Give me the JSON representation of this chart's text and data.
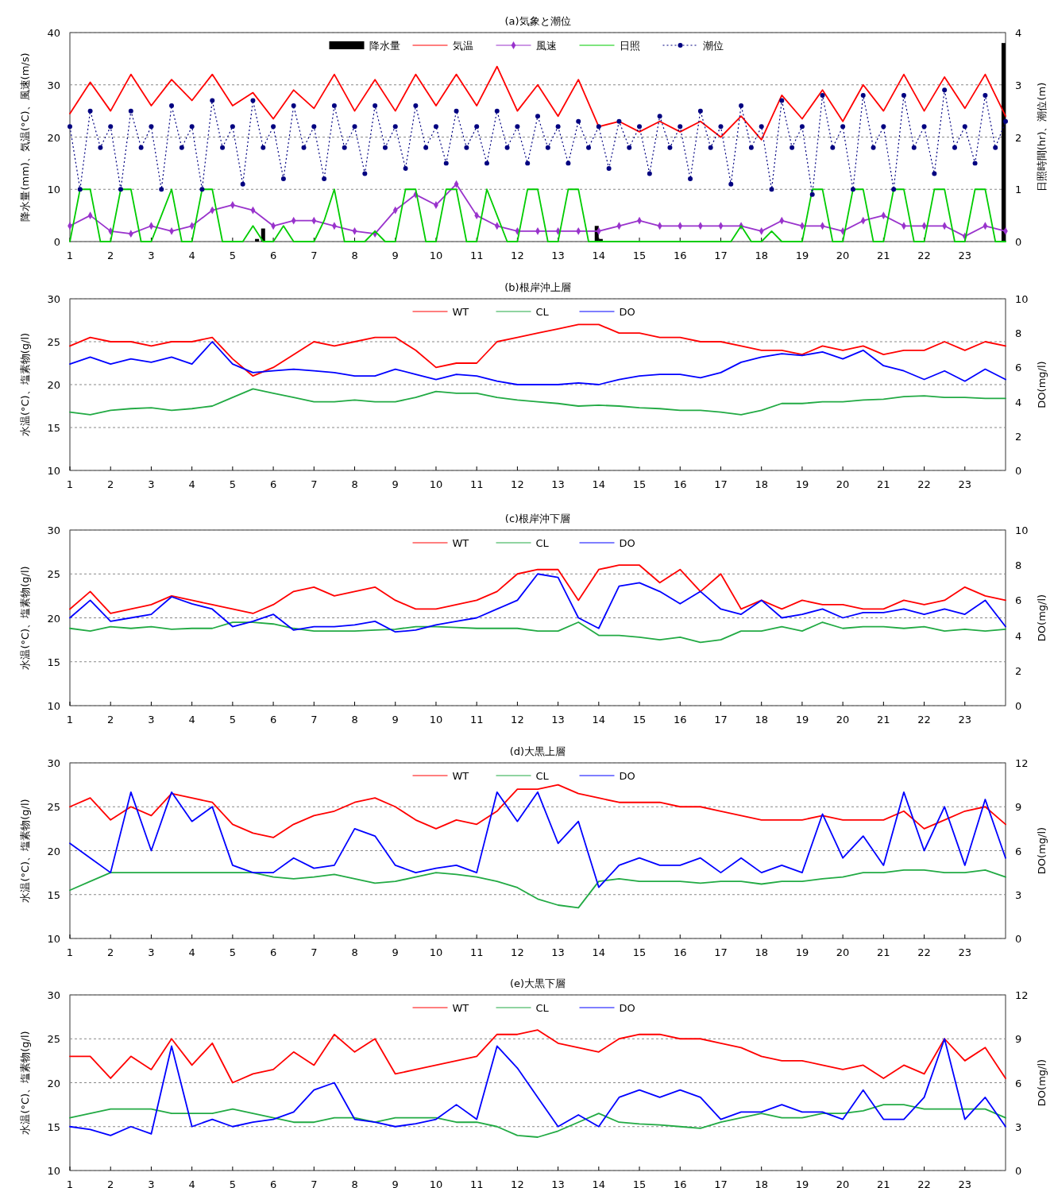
{
  "chart_data": [
    {
      "type": "line",
      "title": "(a)気象と潮位",
      "ylabel": "降水量(mm)、気温(°C)、風速(m/s)",
      "y2label": "日照時間(hr)、潮位(m)",
      "xlim": [
        1,
        24
      ],
      "xticks": [
        1,
        2,
        3,
        4,
        5,
        6,
        7,
        8,
        9,
        10,
        11,
        12,
        13,
        14,
        15,
        16,
        17,
        18,
        19,
        20,
        21,
        22,
        23
      ],
      "ylim": [
        0,
        40
      ],
      "yticks": [
        0,
        10,
        20,
        30,
        40
      ],
      "y2lim": [
        0,
        4
      ],
      "y2ticks": [
        0,
        1,
        2,
        3,
        4
      ],
      "grid": "y",
      "legend": "top",
      "series": [
        {
          "name": "降水量",
          "type": "bar",
          "color": "#000000",
          "x": [
            5.6,
            5.75,
            13.95,
            14.05,
            23.95
          ],
          "values": [
            0.5,
            2.5,
            3,
            0.5,
            38
          ]
        },
        {
          "name": "気温",
          "color": "#ff0000",
          "x": [
            1,
            1.5,
            2,
            2.5,
            3,
            3.5,
            4,
            4.5,
            5,
            5.5,
            6,
            6.5,
            7,
            7.5,
            8,
            8.5,
            9,
            9.5,
            10,
            10.5,
            11,
            11.5,
            12,
            12.5,
            13,
            13.5,
            14,
            14.5,
            15,
            15.5,
            16,
            16.5,
            17,
            17.5,
            18,
            18.5,
            19,
            19.5,
            20,
            20.5,
            21,
            21.5,
            22,
            22.5,
            23,
            23.5,
            24
          ],
          "values": [
            24.5,
            30.5,
            25,
            32,
            26,
            31,
            27,
            32,
            26,
            28.5,
            23.5,
            29,
            25.5,
            32,
            25,
            31,
            25,
            32,
            26,
            32,
            26,
            33.5,
            25,
            30,
            24,
            31,
            22,
            23,
            21,
            23,
            21,
            23,
            20,
            24,
            19.5,
            28,
            23.5,
            29,
            23,
            30,
            25,
            32,
            25,
            31.5,
            25.5,
            32,
            24
          ]
        },
        {
          "name": "風速",
          "color": "#9933cc",
          "marker": "diamond",
          "x": [
            1,
            1.5,
            2,
            2.5,
            3,
            3.5,
            4,
            4.5,
            5,
            5.5,
            6,
            6.5,
            7,
            7.5,
            8,
            8.5,
            9,
            9.5,
            10,
            10.5,
            11,
            11.5,
            12,
            12.5,
            13,
            13.5,
            14,
            14.5,
            15,
            15.5,
            16,
            16.5,
            17,
            17.5,
            18,
            18.5,
            19,
            19.5,
            20,
            20.5,
            21,
            21.5,
            22,
            22.5,
            23,
            23.5,
            24
          ],
          "values": [
            3,
            5,
            2,
            1.5,
            3,
            2,
            3,
            6,
            7,
            6,
            3,
            4,
            4,
            3,
            2,
            1.5,
            6,
            9,
            7,
            11,
            5,
            3,
            2,
            2,
            2,
            2,
            2,
            3,
            4,
            3,
            3,
            3,
            3,
            3,
            2,
            4,
            3,
            3,
            2,
            4,
            5,
            3,
            3,
            3,
            1,
            3,
            2
          ]
        },
        {
          "name": "日照",
          "axis": "y2",
          "color": "#00cc00",
          "x": [
            1,
            1.25,
            1.5,
            1.75,
            2,
            2.25,
            2.5,
            2.75,
            3,
            3.25,
            3.5,
            3.75,
            4,
            4.25,
            4.5,
            4.75,
            5,
            5.25,
            5.5,
            5.75,
            6,
            6.25,
            6.5,
            6.75,
            7,
            7.25,
            7.5,
            7.75,
            8,
            8.25,
            8.5,
            8.75,
            9,
            9.25,
            9.5,
            9.75,
            10,
            10.25,
            10.5,
            10.75,
            11,
            11.25,
            11.5,
            11.75,
            12,
            12.25,
            12.5,
            12.75,
            13,
            13.25,
            13.5,
            13.75,
            14,
            14.25,
            14.5,
            14.75,
            15,
            15.25,
            15.5,
            15.75,
            16,
            16.25,
            16.5,
            16.75,
            17,
            17.25,
            17.5,
            17.75,
            18,
            18.25,
            18.5,
            18.75,
            19,
            19.25,
            19.5,
            19.75,
            20,
            20.25,
            20.5,
            20.75,
            21,
            21.25,
            21.5,
            21.75,
            22,
            22.25,
            22.5,
            22.75,
            23,
            23.25,
            23.5,
            23.75,
            24
          ],
          "values": [
            0,
            1,
            1,
            0,
            0,
            1,
            1,
            0,
            0,
            0.5,
            1,
            0,
            0,
            1,
            1,
            0,
            0,
            0,
            0.3,
            0,
            0,
            0.3,
            0,
            0,
            0,
            0.4,
            1,
            0,
            0,
            0,
            0.2,
            0,
            0,
            1,
            1,
            0,
            0,
            1,
            1,
            0,
            0,
            1,
            0.5,
            0,
            0,
            1,
            1,
            0,
            0,
            1,
            1,
            0,
            0,
            0,
            0,
            0,
            0,
            0,
            0,
            0,
            0,
            0,
            0,
            0,
            0,
            0,
            0.3,
            0,
            0,
            0.2,
            0,
            0,
            0,
            1,
            1,
            0,
            0,
            1,
            1,
            0,
            0,
            1,
            1,
            0,
            0,
            1,
            1,
            0,
            0,
            1,
            1,
            0,
            0
          ]
        },
        {
          "name": "潮位",
          "axis": "y2",
          "color": "#000080",
          "marker": "circle",
          "line_style": "dotted",
          "x": [
            1,
            1.25,
            1.5,
            1.75,
            2,
            2.25,
            2.5,
            2.75,
            3,
            3.25,
            3.5,
            3.75,
            4,
            4.25,
            4.5,
            4.75,
            5,
            5.25,
            5.5,
            5.75,
            6,
            6.25,
            6.5,
            6.75,
            7,
            7.25,
            7.5,
            7.75,
            8,
            8.25,
            8.5,
            8.75,
            9,
            9.25,
            9.5,
            9.75,
            10,
            10.25,
            10.5,
            10.75,
            11,
            11.25,
            11.5,
            11.75,
            12,
            12.25,
            12.5,
            12.75,
            13,
            13.25,
            13.5,
            13.75,
            14,
            14.25,
            14.5,
            14.75,
            15,
            15.25,
            15.5,
            15.75,
            16,
            16.25,
            16.5,
            16.75,
            17,
            17.25,
            17.5,
            17.75,
            18,
            18.25,
            18.5,
            18.75,
            19,
            19.25,
            19.5,
            19.75,
            20,
            20.25,
            20.5,
            20.75,
            21,
            21.25,
            21.5,
            21.75,
            22,
            22.25,
            22.5,
            22.75,
            23,
            23.25,
            23.5,
            23.75,
            24
          ],
          "values": [
            2.2,
            1.0,
            2.5,
            1.8,
            2.2,
            1.0,
            2.5,
            1.8,
            2.2,
            1.0,
            2.6,
            1.8,
            2.2,
            1.0,
            2.7,
            1.8,
            2.2,
            1.1,
            2.7,
            1.8,
            2.2,
            1.2,
            2.6,
            1.8,
            2.2,
            1.2,
            2.6,
            1.8,
            2.2,
            1.3,
            2.6,
            1.8,
            2.2,
            1.4,
            2.6,
            1.8,
            2.2,
            1.5,
            2.5,
            1.8,
            2.2,
            1.5,
            2.5,
            1.8,
            2.2,
            1.5,
            2.4,
            1.8,
            2.2,
            1.5,
            2.3,
            1.8,
            2.2,
            1.4,
            2.3,
            1.8,
            2.2,
            1.3,
            2.4,
            1.8,
            2.2,
            1.2,
            2.5,
            1.8,
            2.2,
            1.1,
            2.6,
            1.8,
            2.2,
            1.0,
            2.7,
            1.8,
            2.2,
            0.9,
            2.8,
            1.8,
            2.2,
            1.0,
            2.8,
            1.8,
            2.2,
            1.0,
            2.8,
            1.8,
            2.2,
            1.3,
            2.9,
            1.8,
            2.2,
            1.5,
            2.8,
            1.8,
            2.3
          ]
        }
      ]
    },
    {
      "type": "line",
      "title": "(b)根岸沖上層",
      "ylabel": "水温(°C)、塩素物(g/l)",
      "y2label": "DO(mg/l)",
      "x": [
        1,
        1.5,
        2,
        2.5,
        3,
        3.5,
        4,
        4.5,
        5,
        5.5,
        6,
        6.5,
        7,
        7.5,
        8,
        8.5,
        9,
        9.5,
        10,
        10.5,
        11,
        11.5,
        12,
        12.5,
        13,
        13.5,
        14,
        14.5,
        15,
        15.5,
        16,
        16.5,
        17,
        17.5,
        18,
        18.5,
        19,
        19.5,
        20,
        20.5,
        21,
        21.5,
        22,
        22.5,
        23,
        23.5,
        24
      ],
      "xlim": [
        1,
        24
      ],
      "xticks": [
        1,
        2,
        3,
        4,
        5,
        6,
        7,
        8,
        9,
        10,
        11,
        12,
        13,
        14,
        15,
        16,
        17,
        18,
        19,
        20,
        21,
        22,
        23
      ],
      "ylim": [
        10,
        30
      ],
      "yticks": [
        10,
        15,
        20,
        25,
        30
      ],
      "y2lim": [
        0,
        10
      ],
      "y2ticks": [
        0,
        2,
        4,
        6,
        8,
        10
      ],
      "grid": "y",
      "legend": "top",
      "series": [
        {
          "name": "WT",
          "color": "#ff0000",
          "values": [
            24.5,
            25.5,
            25,
            25,
            24.5,
            25,
            25,
            25.5,
            23,
            21,
            22,
            23.5,
            25,
            24.5,
            25,
            25.5,
            25.5,
            24,
            22,
            22.5,
            22.5,
            25,
            25.5,
            26,
            26.5,
            27,
            27,
            26,
            26,
            25.5,
            25.5,
            25,
            25,
            24.5,
            24,
            24,
            23.5,
            24.5,
            24,
            24.5,
            23.5,
            24,
            24,
            25,
            24,
            25,
            24.5
          ]
        },
        {
          "name": "CL",
          "color": "#22aa44",
          "values": [
            16.8,
            16.5,
            17,
            17.2,
            17.3,
            17,
            17.2,
            17.5,
            18.5,
            19.5,
            19,
            18.5,
            18,
            18,
            18.2,
            18,
            18,
            18.5,
            19.2,
            19,
            19,
            18.5,
            18.2,
            18,
            17.8,
            17.5,
            17.6,
            17.5,
            17.3,
            17.2,
            17,
            17,
            16.8,
            16.5,
            17,
            17.8,
            17.8,
            18,
            18,
            18.2,
            18.3,
            18.6,
            18.7,
            18.5,
            18.5,
            18.4,
            18.4
          ]
        },
        {
          "name": "DO",
          "axis": "y2",
          "color": "#0000ff",
          "values": [
            6.2,
            6.6,
            6.2,
            6.5,
            6.3,
            6.6,
            6.2,
            7.5,
            6.2,
            5.7,
            5.8,
            5.9,
            5.8,
            5.7,
            5.5,
            5.5,
            5.9,
            5.6,
            5.3,
            5.6,
            5.5,
            5.2,
            5.0,
            5.0,
            5.0,
            5.1,
            5.0,
            5.3,
            5.5,
            5.6,
            5.6,
            5.4,
            5.7,
            6.3,
            6.6,
            6.8,
            6.7,
            6.9,
            6.5,
            7.0,
            6.1,
            5.8,
            5.3,
            5.8,
            5.2,
            5.9,
            5.3
          ]
        }
      ]
    },
    {
      "type": "line",
      "title": "(c)根岸沖下層",
      "ylabel": "水温(°C)、塩素物(g/l)",
      "y2label": "DO(mg/l)",
      "x": [
        1,
        1.5,
        2,
        2.5,
        3,
        3.5,
        4,
        4.5,
        5,
        5.5,
        6,
        6.5,
        7,
        7.5,
        8,
        8.5,
        9,
        9.5,
        10,
        10.5,
        11,
        11.5,
        12,
        12.5,
        13,
        13.5,
        14,
        14.5,
        15,
        15.5,
        16,
        16.5,
        17,
        17.5,
        18,
        18.5,
        19,
        19.5,
        20,
        20.5,
        21,
        21.5,
        22,
        22.5,
        23,
        23.5,
        24
      ],
      "xlim": [
        1,
        24
      ],
      "xticks": [
        1,
        2,
        3,
        4,
        5,
        6,
        7,
        8,
        9,
        10,
        11,
        12,
        13,
        14,
        15,
        16,
        17,
        18,
        19,
        20,
        21,
        22,
        23
      ],
      "ylim": [
        10,
        30
      ],
      "yticks": [
        10,
        15,
        20,
        25,
        30
      ],
      "y2lim": [
        0,
        10
      ],
      "y2ticks": [
        0,
        2,
        4,
        6,
        8,
        10
      ],
      "grid": "y",
      "legend": "top",
      "series": [
        {
          "name": "WT",
          "color": "#ff0000",
          "values": [
            21,
            23,
            20.5,
            21,
            21.5,
            22.5,
            22,
            21.5,
            21,
            20.5,
            21.5,
            23,
            23.5,
            22.5,
            23,
            23.5,
            22,
            21,
            21,
            21.5,
            22,
            23,
            25,
            25.5,
            25.5,
            22,
            25.5,
            26,
            26,
            24,
            25.5,
            23,
            25,
            21,
            22,
            21,
            22,
            21.5,
            21.5,
            21,
            21,
            22,
            21.5,
            22,
            23.5,
            22.5,
            22
          ]
        },
        {
          "name": "CL",
          "color": "#22aa44",
          "values": [
            18.8,
            18.5,
            19,
            18.8,
            19,
            18.7,
            18.8,
            18.8,
            19.5,
            19.5,
            19.3,
            18.8,
            18.5,
            18.5,
            18.5,
            18.6,
            18.7,
            19,
            19,
            18.9,
            18.8,
            18.8,
            18.8,
            18.5,
            18.5,
            19.5,
            18,
            18,
            17.8,
            17.5,
            17.8,
            17.2,
            17.5,
            18.5,
            18.5,
            19,
            18.5,
            19.5,
            18.8,
            19,
            19,
            18.8,
            19,
            18.5,
            18.7,
            18.5,
            18.7
          ]
        },
        {
          "name": "DO",
          "axis": "y2",
          "color": "#0000ff",
          "values": [
            5,
            6,
            4.8,
            5,
            5.2,
            6.2,
            5.8,
            5.5,
            4.5,
            4.8,
            5.2,
            4.3,
            4.5,
            4.5,
            4.6,
            4.8,
            4.2,
            4.3,
            4.6,
            4.8,
            5,
            5.5,
            6,
            7.5,
            7.3,
            5,
            4.4,
            6.8,
            7,
            6.5,
            5.8,
            6.5,
            5.5,
            5.2,
            6,
            5,
            5.2,
            5.5,
            5,
            5.3,
            5.3,
            5.5,
            5.2,
            5.5,
            5.2,
            6,
            4.5
          ]
        }
      ]
    },
    {
      "type": "line",
      "title": "(d)大黒上層",
      "ylabel": "水温(°C)、塩素物(g/l)",
      "y2label": "DO(mg/l)",
      "x": [
        1,
        1.5,
        2,
        2.5,
        3,
        3.5,
        4,
        4.5,
        5,
        5.5,
        6,
        6.5,
        7,
        7.5,
        8,
        8.5,
        9,
        9.5,
        10,
        10.5,
        11,
        11.5,
        12,
        12.5,
        13,
        13.5,
        14,
        14.5,
        15,
        15.5,
        16,
        16.5,
        17,
        17.5,
        18,
        18.5,
        19,
        19.5,
        20,
        20.5,
        21,
        21.5,
        22,
        22.5,
        23,
        23.5,
        24
      ],
      "xlim": [
        1,
        24
      ],
      "xticks": [
        1,
        2,
        3,
        4,
        5,
        6,
        7,
        8,
        9,
        10,
        11,
        12,
        13,
        14,
        15,
        16,
        17,
        18,
        19,
        20,
        21,
        22,
        23
      ],
      "ylim": [
        10,
        30
      ],
      "yticks": [
        10,
        15,
        20,
        25,
        30
      ],
      "y2lim": [
        0,
        12
      ],
      "y2ticks": [
        0,
        3,
        6,
        9,
        12
      ],
      "grid": "y",
      "legend": "top",
      "series": [
        {
          "name": "WT",
          "color": "#ff0000",
          "values": [
            25,
            26,
            23.5,
            25,
            24,
            26.5,
            26,
            25.5,
            23,
            22,
            21.5,
            23,
            24,
            24.5,
            25.5,
            26,
            25,
            23.5,
            22.5,
            23.5,
            23,
            24.5,
            27,
            27,
            27.5,
            26.5,
            26,
            25.5,
            25.5,
            25.5,
            25,
            25,
            24.5,
            24,
            23.5,
            23.5,
            23.5,
            24,
            23.5,
            23.5,
            23.5,
            24.5,
            22.5,
            23.5,
            24.5,
            25,
            23
          ]
        },
        {
          "name": "CL",
          "color": "#22aa44",
          "values": [
            15.5,
            16.5,
            17.5,
            17.5,
            17.5,
            17.5,
            17.5,
            17.5,
            17.5,
            17.5,
            17,
            16.8,
            17,
            17.3,
            16.8,
            16.3,
            16.5,
            17,
            17.5,
            17.3,
            17,
            16.5,
            15.8,
            14.5,
            13.8,
            13.5,
            16.5,
            16.8,
            16.5,
            16.5,
            16.5,
            16.3,
            16.5,
            16.5,
            16.2,
            16.5,
            16.5,
            16.8,
            17,
            17.5,
            17.5,
            17.8,
            17.8,
            17.5,
            17.5,
            17.8,
            17
          ]
        },
        {
          "name": "DO",
          "axis": "y2",
          "color": "#0000ff",
          "values": [
            6.5,
            5.5,
            4.5,
            10,
            6,
            10,
            8,
            9,
            5,
            4.5,
            4.5,
            5.5,
            4.8,
            5,
            7.5,
            7,
            5,
            4.5,
            4.8,
            5,
            4.5,
            10,
            8,
            10,
            6.5,
            8,
            3.5,
            5,
            5.5,
            5,
            5,
            5.5,
            4.5,
            5.5,
            4.5,
            5,
            4.5,
            8.5,
            5.5,
            7,
            5,
            10,
            6,
            9,
            5,
            9.5,
            5.5
          ]
        }
      ]
    },
    {
      "type": "line",
      "title": "(e)大黒下層",
      "ylabel": "水温(°C)、塩素物(g/l)",
      "y2label": "DO(mg/l)",
      "x": [
        1,
        1.5,
        2,
        2.5,
        3,
        3.5,
        4,
        4.5,
        5,
        5.5,
        6,
        6.5,
        7,
        7.5,
        8,
        8.5,
        9,
        9.5,
        10,
        10.5,
        11,
        11.5,
        12,
        12.5,
        13,
        13.5,
        14,
        14.5,
        15,
        15.5,
        16,
        16.5,
        17,
        17.5,
        18,
        18.5,
        19,
        19.5,
        20,
        20.5,
        21,
        21.5,
        22,
        22.5,
        23,
        23.5,
        24
      ],
      "xlim": [
        1,
        24
      ],
      "xticks": [
        1,
        2,
        3,
        4,
        5,
        6,
        7,
        8,
        9,
        10,
        11,
        12,
        13,
        14,
        15,
        16,
        17,
        18,
        19,
        20,
        21,
        22,
        23
      ],
      "ylim": [
        10,
        30
      ],
      "yticks": [
        10,
        15,
        20,
        25,
        30
      ],
      "y2lim": [
        0,
        12
      ],
      "y2ticks": [
        0,
        3,
        6,
        9,
        12
      ],
      "grid": "y",
      "legend": "top",
      "series": [
        {
          "name": "WT",
          "color": "#ff0000",
          "values": [
            23,
            23,
            20.5,
            23,
            21.5,
            25,
            22,
            24.5,
            20,
            21,
            21.5,
            23.5,
            22,
            25.5,
            23.5,
            25,
            21,
            21.5,
            22,
            22.5,
            23,
            25.5,
            25.5,
            26,
            24.5,
            24,
            23.5,
            25,
            25.5,
            25.5,
            25,
            25,
            24.5,
            24,
            23,
            22.5,
            22.5,
            22,
            21.5,
            22,
            20.5,
            22,
            21,
            25,
            22.5,
            24,
            20.5
          ]
        },
        {
          "name": "CL",
          "color": "#22aa44",
          "values": [
            16,
            16.5,
            17,
            17,
            17,
            16.5,
            16.5,
            16.5,
            17,
            16.5,
            16,
            15.5,
            15.5,
            16,
            16,
            15.5,
            16,
            16,
            16,
            15.5,
            15.5,
            15,
            14,
            13.8,
            14.5,
            15.5,
            16.5,
            15.5,
            15.3,
            15.2,
            15,
            14.8,
            15.5,
            16,
            16.5,
            16,
            16,
            16.5,
            16.5,
            16.8,
            17.5,
            17.5,
            17,
            17,
            17,
            17,
            16
          ]
        },
        {
          "name": "DO",
          "axis": "y2",
          "color": "#0000ff",
          "values": [
            3,
            2.8,
            2.4,
            3,
            2.5,
            8.5,
            3,
            3.5,
            3,
            3.3,
            3.5,
            4,
            5.5,
            6,
            3.5,
            3.3,
            3,
            3.2,
            3.5,
            4.5,
            3.5,
            8.5,
            7,
            5,
            3,
            3.8,
            3,
            5,
            5.5,
            5,
            5.5,
            5,
            3.5,
            4,
            4,
            4.5,
            4,
            4,
            3.5,
            5.5,
            3.5,
            3.5,
            5,
            9,
            3.5,
            5,
            3
          ]
        }
      ]
    }
  ]
}
